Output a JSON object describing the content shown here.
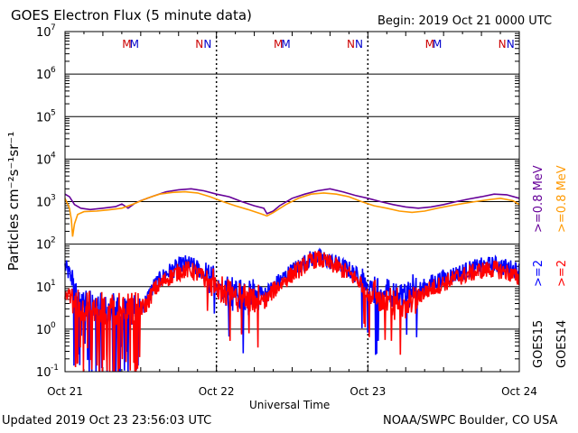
{
  "header": {
    "title": "GOES Electron Flux (5 minute data)",
    "begin": "Begin: 2019 Oct 21 0000 UTC"
  },
  "footer": {
    "updated": "Updated 2019 Oct 23 23:56:03 UTC",
    "credit": "NOAA/SWPC Boulder, CO USA"
  },
  "chart_data": {
    "type": "line",
    "title": "GOES Electron Flux (5 minute data)",
    "xlabel": "Universal Time",
    "ylabel": "Particles cm⁻²s⁻¹sr⁻¹",
    "y_scale": "log",
    "ylim": [
      0.1,
      10000000
    ],
    "y_ticks": [
      {
        "value": 0.1,
        "label": "10",
        "exp": "-1"
      },
      {
        "value": 1,
        "label": "10",
        "exp": "0"
      },
      {
        "value": 10,
        "label": "10",
        "exp": "1"
      },
      {
        "value": 100,
        "label": "10",
        "exp": "2"
      },
      {
        "value": 1000,
        "label": "10",
        "exp": "3"
      },
      {
        "value": 10000,
        "label": "10",
        "exp": "4"
      },
      {
        "value": 100000,
        "label": "10",
        "exp": "5"
      },
      {
        "value": 1000000,
        "label": "10",
        "exp": "6"
      },
      {
        "value": 10000000,
        "label": "10",
        "exp": "7"
      }
    ],
    "xlim": [
      0,
      72
    ],
    "x_ticks": [
      {
        "hour": 0,
        "label": "Oct 21"
      },
      {
        "hour": 24,
        "label": "Oct 22"
      },
      {
        "hour": 48,
        "label": "Oct 23"
      },
      {
        "hour": 72,
        "label": "Oct 24"
      }
    ],
    "threshold": 1000,
    "markers": [
      {
        "hour": 9.8,
        "label": "M",
        "color": "#cc0000"
      },
      {
        "hour": 11.0,
        "label": "M",
        "color": "#0000cc"
      },
      {
        "hour": 21.3,
        "label": "N",
        "color": "#cc0000"
      },
      {
        "hour": 22.6,
        "label": "N",
        "color": "#0000cc"
      },
      {
        "hour": 33.8,
        "label": "M",
        "color": "#cc0000"
      },
      {
        "hour": 35.0,
        "label": "M",
        "color": "#0000cc"
      },
      {
        "hour": 45.3,
        "label": "N",
        "color": "#cc0000"
      },
      {
        "hour": 46.6,
        "label": "N",
        "color": "#0000cc"
      },
      {
        "hour": 57.8,
        "label": "M",
        "color": "#cc0000"
      },
      {
        "hour": 59.0,
        "label": "M",
        "color": "#0000cc"
      },
      {
        "hour": 69.3,
        "label": "N",
        "color": "#cc0000"
      },
      {
        "hour": 70.6,
        "label": "N",
        "color": "#0000cc"
      }
    ],
    "series": [
      {
        "name": ">=0.8 MeV",
        "satellite": "GOES15",
        "color": "#660099",
        "points": [
          [
            0,
            1500
          ],
          [
            0.7,
            1300
          ],
          [
            1.5,
            850
          ],
          [
            2.5,
            700
          ],
          [
            4,
            650
          ],
          [
            6,
            700
          ],
          [
            8,
            760
          ],
          [
            9,
            880
          ],
          [
            10,
            700
          ],
          [
            11,
            900
          ],
          [
            12,
            1050
          ],
          [
            14,
            1350
          ],
          [
            16,
            1700
          ],
          [
            18,
            1900
          ],
          [
            20,
            2000
          ],
          [
            22,
            1800
          ],
          [
            24,
            1500
          ],
          [
            26,
            1300
          ],
          [
            28,
            1000
          ],
          [
            30,
            800
          ],
          [
            31.5,
            700
          ],
          [
            32,
            520
          ],
          [
            33,
            600
          ],
          [
            34,
            800
          ],
          [
            36,
            1200
          ],
          [
            38,
            1500
          ],
          [
            40,
            1800
          ],
          [
            42,
            2000
          ],
          [
            44,
            1700
          ],
          [
            46,
            1400
          ],
          [
            48,
            1200
          ],
          [
            50,
            1000
          ],
          [
            52,
            850
          ],
          [
            54,
            750
          ],
          [
            56,
            700
          ],
          [
            58,
            750
          ],
          [
            60,
            850
          ],
          [
            62,
            1000
          ],
          [
            64,
            1150
          ],
          [
            66,
            1300
          ],
          [
            68,
            1500
          ],
          [
            70,
            1450
          ],
          [
            72,
            1200
          ]
        ]
      },
      {
        "name": ">=0.8 MeV",
        "satellite": "GOES14",
        "color": "#ff9900",
        "points": [
          [
            0,
            1200
          ],
          [
            0.7,
            700
          ],
          [
            1,
            380
          ],
          [
            1.2,
            150
          ],
          [
            1.5,
            300
          ],
          [
            2,
            500
          ],
          [
            3,
            580
          ],
          [
            5,
            600
          ],
          [
            7,
            640
          ],
          [
            9,
            700
          ],
          [
            11,
            900
          ],
          [
            13,
            1200
          ],
          [
            15,
            1500
          ],
          [
            17,
            1650
          ],
          [
            19,
            1700
          ],
          [
            21,
            1600
          ],
          [
            23,
            1300
          ],
          [
            25,
            1000
          ],
          [
            27,
            800
          ],
          [
            29,
            650
          ],
          [
            31,
            520
          ],
          [
            32,
            460
          ],
          [
            33,
            550
          ],
          [
            35,
            850
          ],
          [
            37,
            1200
          ],
          [
            39,
            1500
          ],
          [
            41,
            1600
          ],
          [
            43,
            1500
          ],
          [
            45,
            1300
          ],
          [
            47,
            1000
          ],
          [
            49,
            800
          ],
          [
            51,
            700
          ],
          [
            53,
            600
          ],
          [
            55,
            560
          ],
          [
            57,
            600
          ],
          [
            59,
            700
          ],
          [
            61,
            800
          ],
          [
            63,
            900
          ],
          [
            65,
            1000
          ],
          [
            67,
            1100
          ],
          [
            69,
            1200
          ],
          [
            71,
            1050
          ],
          [
            72,
            850
          ]
        ]
      },
      {
        "name": ">=2 MeV",
        "satellite": "GOES15",
        "color": "#0000ff",
        "points": [
          [
            0,
            30
          ],
          [
            0.8,
            18
          ],
          [
            1.5,
            8
          ],
          [
            2.5,
            5
          ],
          [
            4,
            4
          ],
          [
            6,
            3
          ],
          [
            8,
            3
          ],
          [
            10,
            3
          ],
          [
            12,
            3
          ],
          [
            13,
            5
          ],
          [
            14,
            10
          ],
          [
            16,
            20
          ],
          [
            18,
            30
          ],
          [
            19,
            35
          ],
          [
            20,
            32
          ],
          [
            22,
            22
          ],
          [
            24,
            12
          ],
          [
            26,
            8
          ],
          [
            28,
            6
          ],
          [
            30,
            6
          ],
          [
            32,
            7
          ],
          [
            33,
            10
          ],
          [
            35,
            18
          ],
          [
            37,
            30
          ],
          [
            39,
            45
          ],
          [
            40,
            50
          ],
          [
            41,
            45
          ],
          [
            43,
            35
          ],
          [
            45,
            25
          ],
          [
            47,
            15
          ],
          [
            48,
            10
          ],
          [
            50,
            7
          ],
          [
            52,
            6
          ],
          [
            54,
            6
          ],
          [
            56,
            8
          ],
          [
            58,
            12
          ],
          [
            60,
            16
          ],
          [
            62,
            20
          ],
          [
            64,
            25
          ],
          [
            66,
            30
          ],
          [
            68,
            33
          ],
          [
            70,
            28
          ],
          [
            72,
            24
          ]
        ],
        "noise": 0.35,
        "dropouts": [
          [
            1,
            12
          ],
          [
            22,
            31
          ],
          [
            47,
            56
          ]
        ],
        "deep_drops_until": 18.5
      },
      {
        "name": ">=2 MeV",
        "satellite": "GOES14",
        "color": "#ff0000",
        "points": [
          [
            0,
            8
          ],
          [
            1,
            5
          ],
          [
            2,
            4
          ],
          [
            4,
            3
          ],
          [
            6,
            3
          ],
          [
            8,
            3
          ],
          [
            10,
            3
          ],
          [
            12,
            3
          ],
          [
            13,
            4
          ],
          [
            14,
            8
          ],
          [
            16,
            15
          ],
          [
            18,
            22
          ],
          [
            19,
            25
          ],
          [
            20,
            24
          ],
          [
            22,
            16
          ],
          [
            24,
            9
          ],
          [
            26,
            6
          ],
          [
            28,
            5
          ],
          [
            30,
            4
          ],
          [
            32,
            5
          ],
          [
            33,
            8
          ],
          [
            35,
            15
          ],
          [
            37,
            25
          ],
          [
            39,
            40
          ],
          [
            40,
            45
          ],
          [
            41,
            40
          ],
          [
            43,
            30
          ],
          [
            45,
            20
          ],
          [
            47,
            12
          ],
          [
            48,
            8
          ],
          [
            50,
            5
          ],
          [
            52,
            4
          ],
          [
            54,
            4
          ],
          [
            56,
            6
          ],
          [
            58,
            9
          ],
          [
            60,
            12
          ],
          [
            62,
            16
          ],
          [
            64,
            20
          ],
          [
            66,
            24
          ],
          [
            68,
            26
          ],
          [
            70,
            22
          ],
          [
            72,
            15
          ]
        ],
        "noise": 0.35,
        "dropouts": [
          [
            1,
            12
          ],
          [
            22,
            31
          ],
          [
            47,
            56
          ]
        ],
        "deep_drops_until": 16
      }
    ],
    "legend": {
      "placement": "right",
      "goes15": {
        "label": "GOES15",
        "hi": ">=0.8 MeV",
        "lo": ">=2"
      },
      "goes14": {
        "label": "GOES14",
        "hi": ">=0.8 MeV",
        "lo": ">=2"
      }
    }
  }
}
